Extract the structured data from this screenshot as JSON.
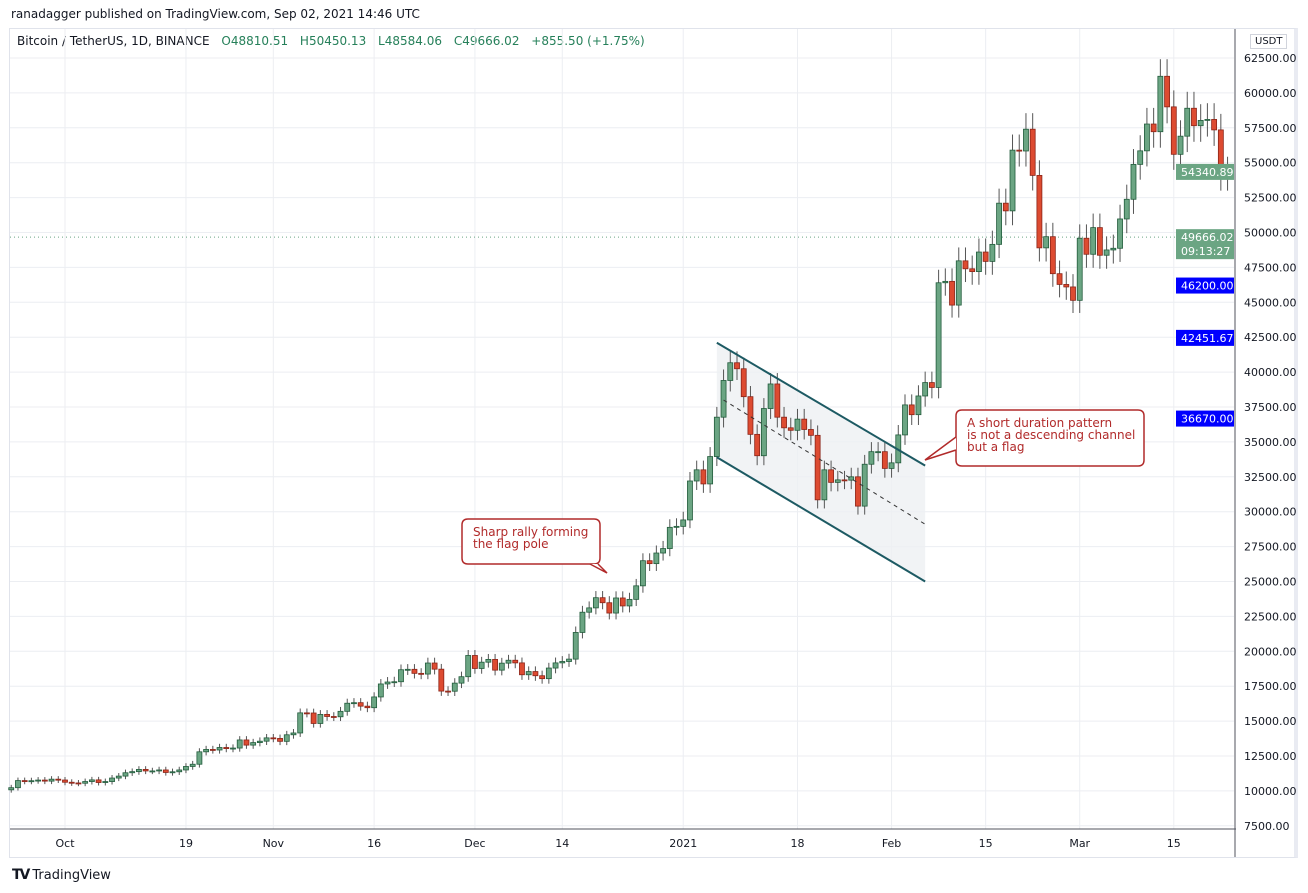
{
  "header": {
    "published": "ranadagger published on TradingView.com, Sep 02, 2021 14:46 UTC",
    "symbol": "Bitcoin / TetherUS, 1D, BINANCE",
    "open": "O48810.51",
    "high": "H50450.13",
    "low": "L48584.06",
    "close": "C49666.02",
    "change": "+855.50 (+1.75%)"
  },
  "currency": "USDT",
  "footer": {
    "logo": "TradingView"
  },
  "colors": {
    "up": "#6ba583",
    "down": "#dd4b31",
    "channel": "#1d5a63",
    "note": "#b12a2a",
    "level_tag": "#0000ff",
    "price_tag": "#6ba583"
  },
  "chart_data": {
    "type": "candlestick",
    "xlabel": "",
    "ylabel": "",
    "ylim": [
      7500,
      62500
    ],
    "y_ticks": [
      "62500.00",
      "60000.00",
      "57500.00",
      "55000.00",
      "52500.00",
      "50000.00",
      "47500.00",
      "45000.00",
      "42500.00",
      "40000.00",
      "37500.00",
      "35000.00",
      "32500.00",
      "30000.00",
      "27500.00",
      "25000.00",
      "22500.00",
      "20000.00",
      "17500.00",
      "15000.00",
      "12500.00",
      "10000.00",
      "7500.00"
    ],
    "x_ticks": [
      {
        "date": "2020-10-01",
        "label": "Oct"
      },
      {
        "date": "2020-10-19",
        "label": "19"
      },
      {
        "date": "2020-11-01",
        "label": "Nov"
      },
      {
        "date": "2020-11-16",
        "label": "16"
      },
      {
        "date": "2020-12-01",
        "label": "Dec"
      },
      {
        "date": "2020-12-14",
        "label": "14"
      },
      {
        "date": "2021-01-01",
        "label": "2021"
      },
      {
        "date": "2021-01-18",
        "label": "18"
      },
      {
        "date": "2021-02-01",
        "label": "Feb"
      },
      {
        "date": "2021-02-15",
        "label": "15"
      },
      {
        "date": "2021-03-01",
        "label": "Mar"
      },
      {
        "date": "2021-03-15",
        "label": "15"
      }
    ],
    "grid": true,
    "closes": [
      [
        "2020-09-23",
        10230
      ],
      [
        "2020-09-24",
        10740
      ],
      [
        "2020-09-25",
        10690
      ],
      [
        "2020-09-26",
        10730
      ],
      [
        "2020-09-27",
        10775
      ],
      [
        "2020-09-28",
        10700
      ],
      [
        "2020-09-29",
        10840
      ],
      [
        "2020-09-30",
        10780
      ],
      [
        "2020-10-01",
        10620
      ],
      [
        "2020-10-02",
        10570
      ],
      [
        "2020-10-03",
        10550
      ],
      [
        "2020-10-04",
        10670
      ],
      [
        "2020-10-05",
        10790
      ],
      [
        "2020-10-06",
        10600
      ],
      [
        "2020-10-07",
        10670
      ],
      [
        "2020-10-08",
        10920
      ],
      [
        "2020-10-09",
        11060
      ],
      [
        "2020-10-10",
        11300
      ],
      [
        "2020-10-11",
        11380
      ],
      [
        "2020-10-12",
        11540
      ],
      [
        "2020-10-13",
        11430
      ],
      [
        "2020-10-14",
        11430
      ],
      [
        "2020-10-15",
        11500
      ],
      [
        "2020-10-16",
        11320
      ],
      [
        "2020-10-17",
        11370
      ],
      [
        "2020-10-18",
        11500
      ],
      [
        "2020-10-19",
        11750
      ],
      [
        "2020-10-20",
        11910
      ],
      [
        "2020-10-21",
        12800
      ],
      [
        "2020-10-22",
        12970
      ],
      [
        "2020-10-23",
        12930
      ],
      [
        "2020-10-24",
        13110
      ],
      [
        "2020-10-25",
        13030
      ],
      [
        "2020-10-26",
        13070
      ],
      [
        "2020-10-27",
        13650
      ],
      [
        "2020-10-28",
        13280
      ],
      [
        "2020-10-29",
        13460
      ],
      [
        "2020-10-30",
        13560
      ],
      [
        "2020-10-31",
        13800
      ],
      [
        "2020-11-01",
        13760
      ],
      [
        "2020-11-02",
        13550
      ],
      [
        "2020-11-03",
        14020
      ],
      [
        "2020-11-04",
        14150
      ],
      [
        "2020-11-05",
        15590
      ],
      [
        "2020-11-06",
        15580
      ],
      [
        "2020-11-07",
        14830
      ],
      [
        "2020-11-08",
        15480
      ],
      [
        "2020-11-09",
        15330
      ],
      [
        "2020-11-10",
        15310
      ],
      [
        "2020-11-11",
        15700
      ],
      [
        "2020-11-12",
        16280
      ],
      [
        "2020-11-13",
        16320
      ],
      [
        "2020-11-14",
        16070
      ],
      [
        "2020-11-15",
        15960
      ],
      [
        "2020-11-16",
        16730
      ],
      [
        "2020-11-17",
        17660
      ],
      [
        "2020-11-18",
        17800
      ],
      [
        "2020-11-19",
        17820
      ],
      [
        "2020-11-20",
        18680
      ],
      [
        "2020-11-21",
        18710
      ],
      [
        "2020-11-22",
        18420
      ],
      [
        "2020-11-23",
        18370
      ],
      [
        "2020-11-24",
        19160
      ],
      [
        "2020-11-25",
        18720
      ],
      [
        "2020-11-26",
        17150
      ],
      [
        "2020-11-27",
        17140
      ],
      [
        "2020-11-28",
        17720
      ],
      [
        "2020-11-29",
        18180
      ],
      [
        "2020-11-30",
        19700
      ],
      [
        "2020-12-01",
        18770
      ],
      [
        "2020-12-02",
        19220
      ],
      [
        "2020-12-03",
        19420
      ],
      [
        "2020-12-04",
        18650
      ],
      [
        "2020-12-05",
        19150
      ],
      [
        "2020-12-06",
        19360
      ],
      [
        "2020-12-07",
        19170
      ],
      [
        "2020-12-08",
        18320
      ],
      [
        "2020-12-09",
        18550
      ],
      [
        "2020-12-10",
        18250
      ],
      [
        "2020-12-11",
        18040
      ],
      [
        "2020-12-12",
        18800
      ],
      [
        "2020-12-13",
        19170
      ],
      [
        "2020-12-14",
        19270
      ],
      [
        "2020-12-15",
        19440
      ],
      [
        "2020-12-16",
        21350
      ],
      [
        "2020-12-17",
        22800
      ],
      [
        "2020-12-18",
        23110
      ],
      [
        "2020-12-19",
        23840
      ],
      [
        "2020-12-20",
        23480
      ],
      [
        "2020-12-21",
        22740
      ],
      [
        "2020-12-22",
        23820
      ],
      [
        "2020-12-23",
        23250
      ],
      [
        "2020-12-24",
        23720
      ],
      [
        "2020-12-25",
        24690
      ],
      [
        "2020-12-26",
        26490
      ],
      [
        "2020-12-27",
        26280
      ],
      [
        "2020-12-28",
        27040
      ],
      [
        "2020-12-29",
        27360
      ],
      [
        "2020-12-30",
        28880
      ],
      [
        "2020-12-31",
        28950
      ],
      [
        "2021-01-01",
        29410
      ],
      [
        "2021-01-02",
        32200
      ],
      [
        "2021-01-03",
        33000
      ],
      [
        "2021-01-04",
        31990
      ],
      [
        "2021-01-05",
        33950
      ],
      [
        "2021-01-06",
        36770
      ],
      [
        "2021-01-07",
        39400
      ],
      [
        "2021-01-08",
        40670
      ],
      [
        "2021-01-09",
        40240
      ],
      [
        "2021-01-10",
        38240
      ],
      [
        "2021-01-11",
        35540
      ],
      [
        "2021-01-12",
        34010
      ],
      [
        "2021-01-13",
        37390
      ],
      [
        "2021-01-14",
        39150
      ],
      [
        "2021-01-15",
        36770
      ],
      [
        "2021-01-16",
        36010
      ],
      [
        "2021-01-17",
        35830
      ],
      [
        "2021-01-18",
        36630
      ],
      [
        "2021-01-19",
        35890
      ],
      [
        "2021-01-20",
        35470
      ],
      [
        "2021-01-21",
        30850
      ],
      [
        "2021-01-22",
        33000
      ],
      [
        "2021-01-23",
        32100
      ],
      [
        "2021-01-24",
        32280
      ],
      [
        "2021-01-25",
        32260
      ],
      [
        "2021-01-26",
        32500
      ],
      [
        "2021-01-27",
        30400
      ],
      [
        "2021-01-28",
        33400
      ],
      [
        "2021-01-29",
        34300
      ],
      [
        "2021-01-30",
        34300
      ],
      [
        "2021-01-31",
        33100
      ],
      [
        "2021-02-01",
        33500
      ],
      [
        "2021-02-02",
        35500
      ],
      [
        "2021-02-03",
        37650
      ],
      [
        "2021-02-04",
        36950
      ],
      [
        "2021-02-05",
        38290
      ],
      [
        "2021-02-06",
        39250
      ],
      [
        "2021-02-07",
        38900
      ],
      [
        "2021-02-08",
        46400
      ],
      [
        "2021-02-09",
        46500
      ],
      [
        "2021-02-10",
        44800
      ],
      [
        "2021-02-11",
        47970
      ],
      [
        "2021-02-12",
        47400
      ],
      [
        "2021-02-13",
        47200
      ],
      [
        "2021-02-14",
        48600
      ],
      [
        "2021-02-15",
        47930
      ],
      [
        "2021-02-16",
        49150
      ],
      [
        "2021-02-17",
        52100
      ],
      [
        "2021-02-18",
        51550
      ],
      [
        "2021-02-19",
        55900
      ],
      [
        "2021-02-20",
        55840
      ],
      [
        "2021-02-21",
        57400
      ],
      [
        "2021-02-22",
        54090
      ],
      [
        "2021-02-23",
        48900
      ],
      [
        "2021-02-24",
        49700
      ],
      [
        "2021-02-25",
        47050
      ],
      [
        "2021-02-26",
        46280
      ],
      [
        "2021-02-27",
        46100
      ],
      [
        "2021-02-28",
        45140
      ],
      [
        "2021-03-01",
        49590
      ],
      [
        "2021-03-02",
        48440
      ],
      [
        "2021-03-03",
        50350
      ],
      [
        "2021-03-04",
        48370
      ],
      [
        "2021-03-05",
        48750
      ],
      [
        "2021-03-06",
        48870
      ],
      [
        "2021-03-07",
        50970
      ],
      [
        "2021-03-08",
        52380
      ],
      [
        "2021-03-09",
        54880
      ],
      [
        "2021-03-10",
        55850
      ],
      [
        "2021-03-11",
        57770
      ],
      [
        "2021-03-12",
        57220
      ],
      [
        "2021-03-13",
        61190
      ],
      [
        "2021-03-14",
        59000
      ],
      [
        "2021-03-15",
        55600
      ],
      [
        "2021-03-16",
        56900
      ],
      [
        "2021-03-17",
        58900
      ],
      [
        "2021-03-18",
        57650
      ],
      [
        "2021-03-19",
        58030
      ],
      [
        "2021-03-20",
        58100
      ],
      [
        "2021-03-21",
        57350
      ],
      [
        "2021-03-22",
        54080
      ],
      [
        "2021-03-23",
        54340.89
      ]
    ],
    "channel": {
      "upper": [
        [
          "2021-01-06",
          42100
        ],
        [
          "2021-02-06",
          33300
        ]
      ],
      "lower": [
        [
          "2021-01-06",
          33900
        ],
        [
          "2021-02-06",
          25000
        ]
      ],
      "mid": [
        [
          "2021-01-07",
          38000
        ],
        [
          "2021-02-06",
          29100
        ]
      ]
    },
    "annotations": [
      "Sharp rally forming\nthe flag pole",
      "A short duration pattern\nis not a descending channel\nbut a flag"
    ],
    "price_tags": {
      "last": "54340.89",
      "current": "49666.02",
      "countdown": "09:13:27",
      "current_value": 49666.02,
      "levels": [
        "46200.00",
        "42451.67",
        "36670.00"
      ]
    }
  }
}
